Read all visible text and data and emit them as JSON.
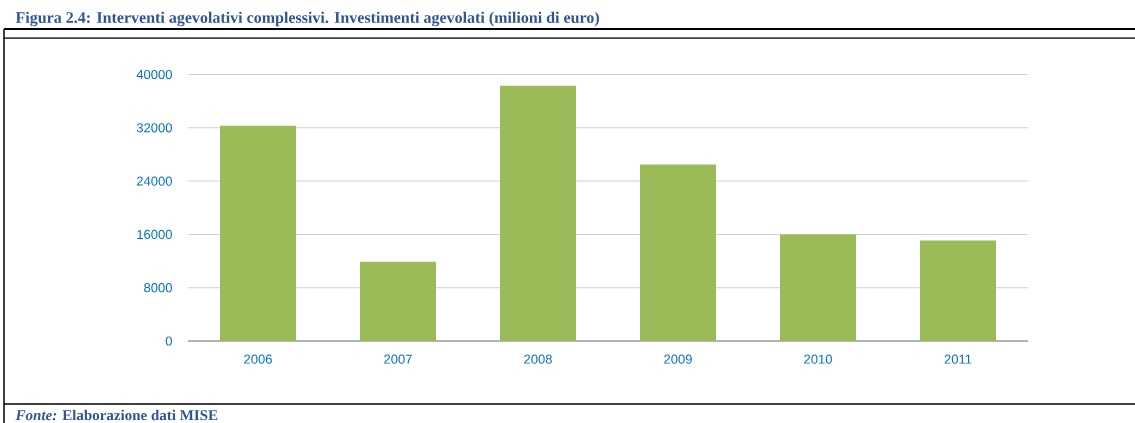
{
  "chart_data": {
    "type": "bar",
    "title": "Figura 2.4: Interventi agevolativi complessivi. Investimenti agevolati (milioni di euro)",
    "categories": [
      "2006",
      "2007",
      "2008",
      "2009",
      "2010",
      "2011"
    ],
    "values": [
      32300,
      11900,
      38300,
      26500,
      16000,
      15100
    ],
    "color": "#9bbb59",
    "ylim": [
      0,
      40000
    ],
    "yticks": [
      0,
      8000,
      16000,
      24000,
      32000,
      40000
    ],
    "grid": "y",
    "annotations": [
      "*Fonte:* Elaborazione dati MISE"
    ]
  }
}
